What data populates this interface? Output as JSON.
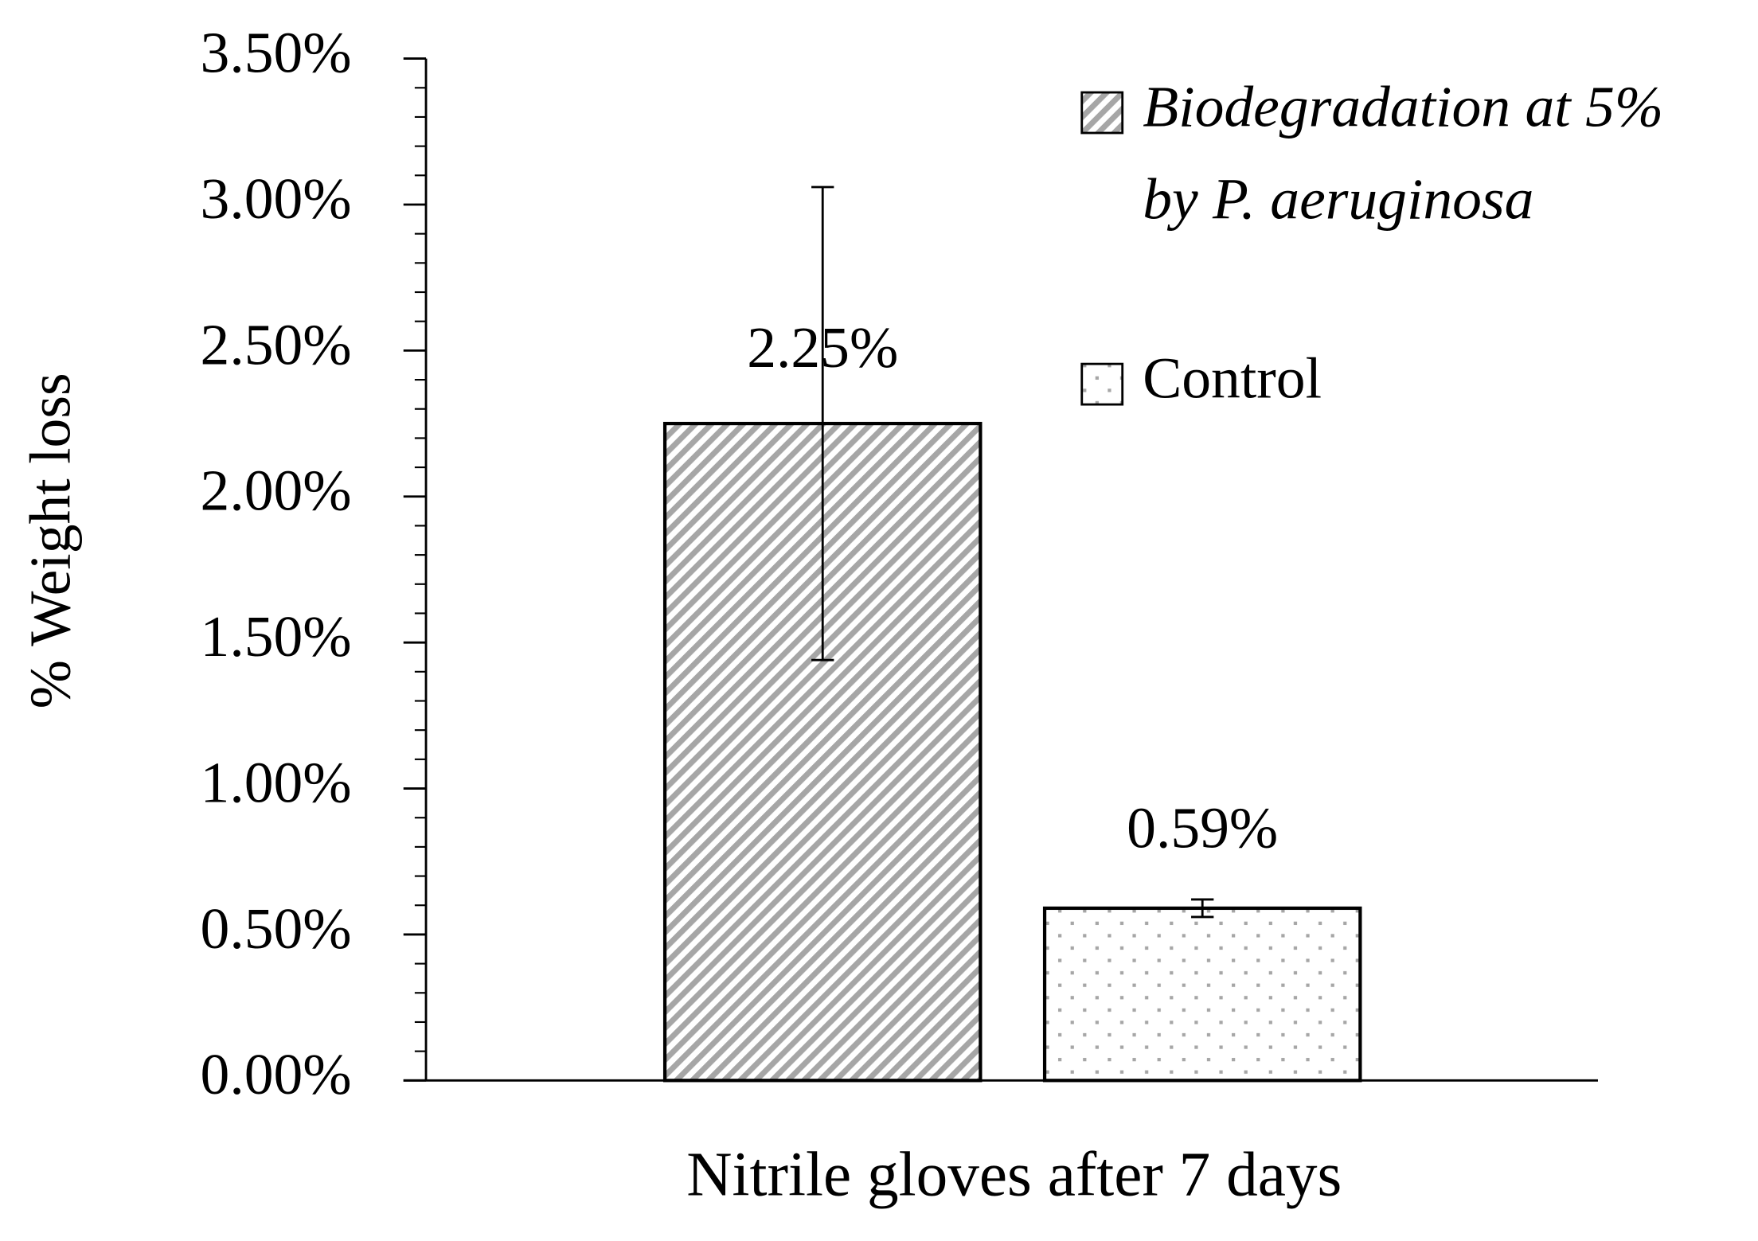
{
  "chart_data": {
    "type": "bar",
    "categories": [
      "Nitrile gloves after 7 days"
    ],
    "y_label": "% Weight loss",
    "ylim": [
      0,
      3.5
    ],
    "yticks": [
      {
        "value": 0,
        "label": "0.00%"
      },
      {
        "value": 0.5,
        "label": "0.50%"
      },
      {
        "value": 1,
        "label": "1.00%"
      },
      {
        "value": 1.5,
        "label": "1.50%"
      },
      {
        "value": 2,
        "label": "2.00%"
      },
      {
        "value": 2.5,
        "label": "2.50%"
      },
      {
        "value": 3,
        "label": "3.00%"
      },
      {
        "value": 3.5,
        "label": "3.50%"
      }
    ],
    "minor_tick_step": 0.1,
    "grid": false,
    "legend": "top-right",
    "series": [
      {
        "name": "Biodegradation at 5% by P. aeruginosa",
        "color": "#a6a6a6",
        "pattern": "hatch",
        "italic": true,
        "values": [
          2.25
        ],
        "value_labels": [
          "2.25%"
        ],
        "errors": [
          0.81
        ]
      },
      {
        "name": "Control",
        "color": "#a6a6a6",
        "pattern": "dots",
        "italic": false,
        "values": [
          0.59
        ],
        "value_labels": [
          "0.59%"
        ],
        "errors": [
          0.03
        ]
      }
    ]
  }
}
